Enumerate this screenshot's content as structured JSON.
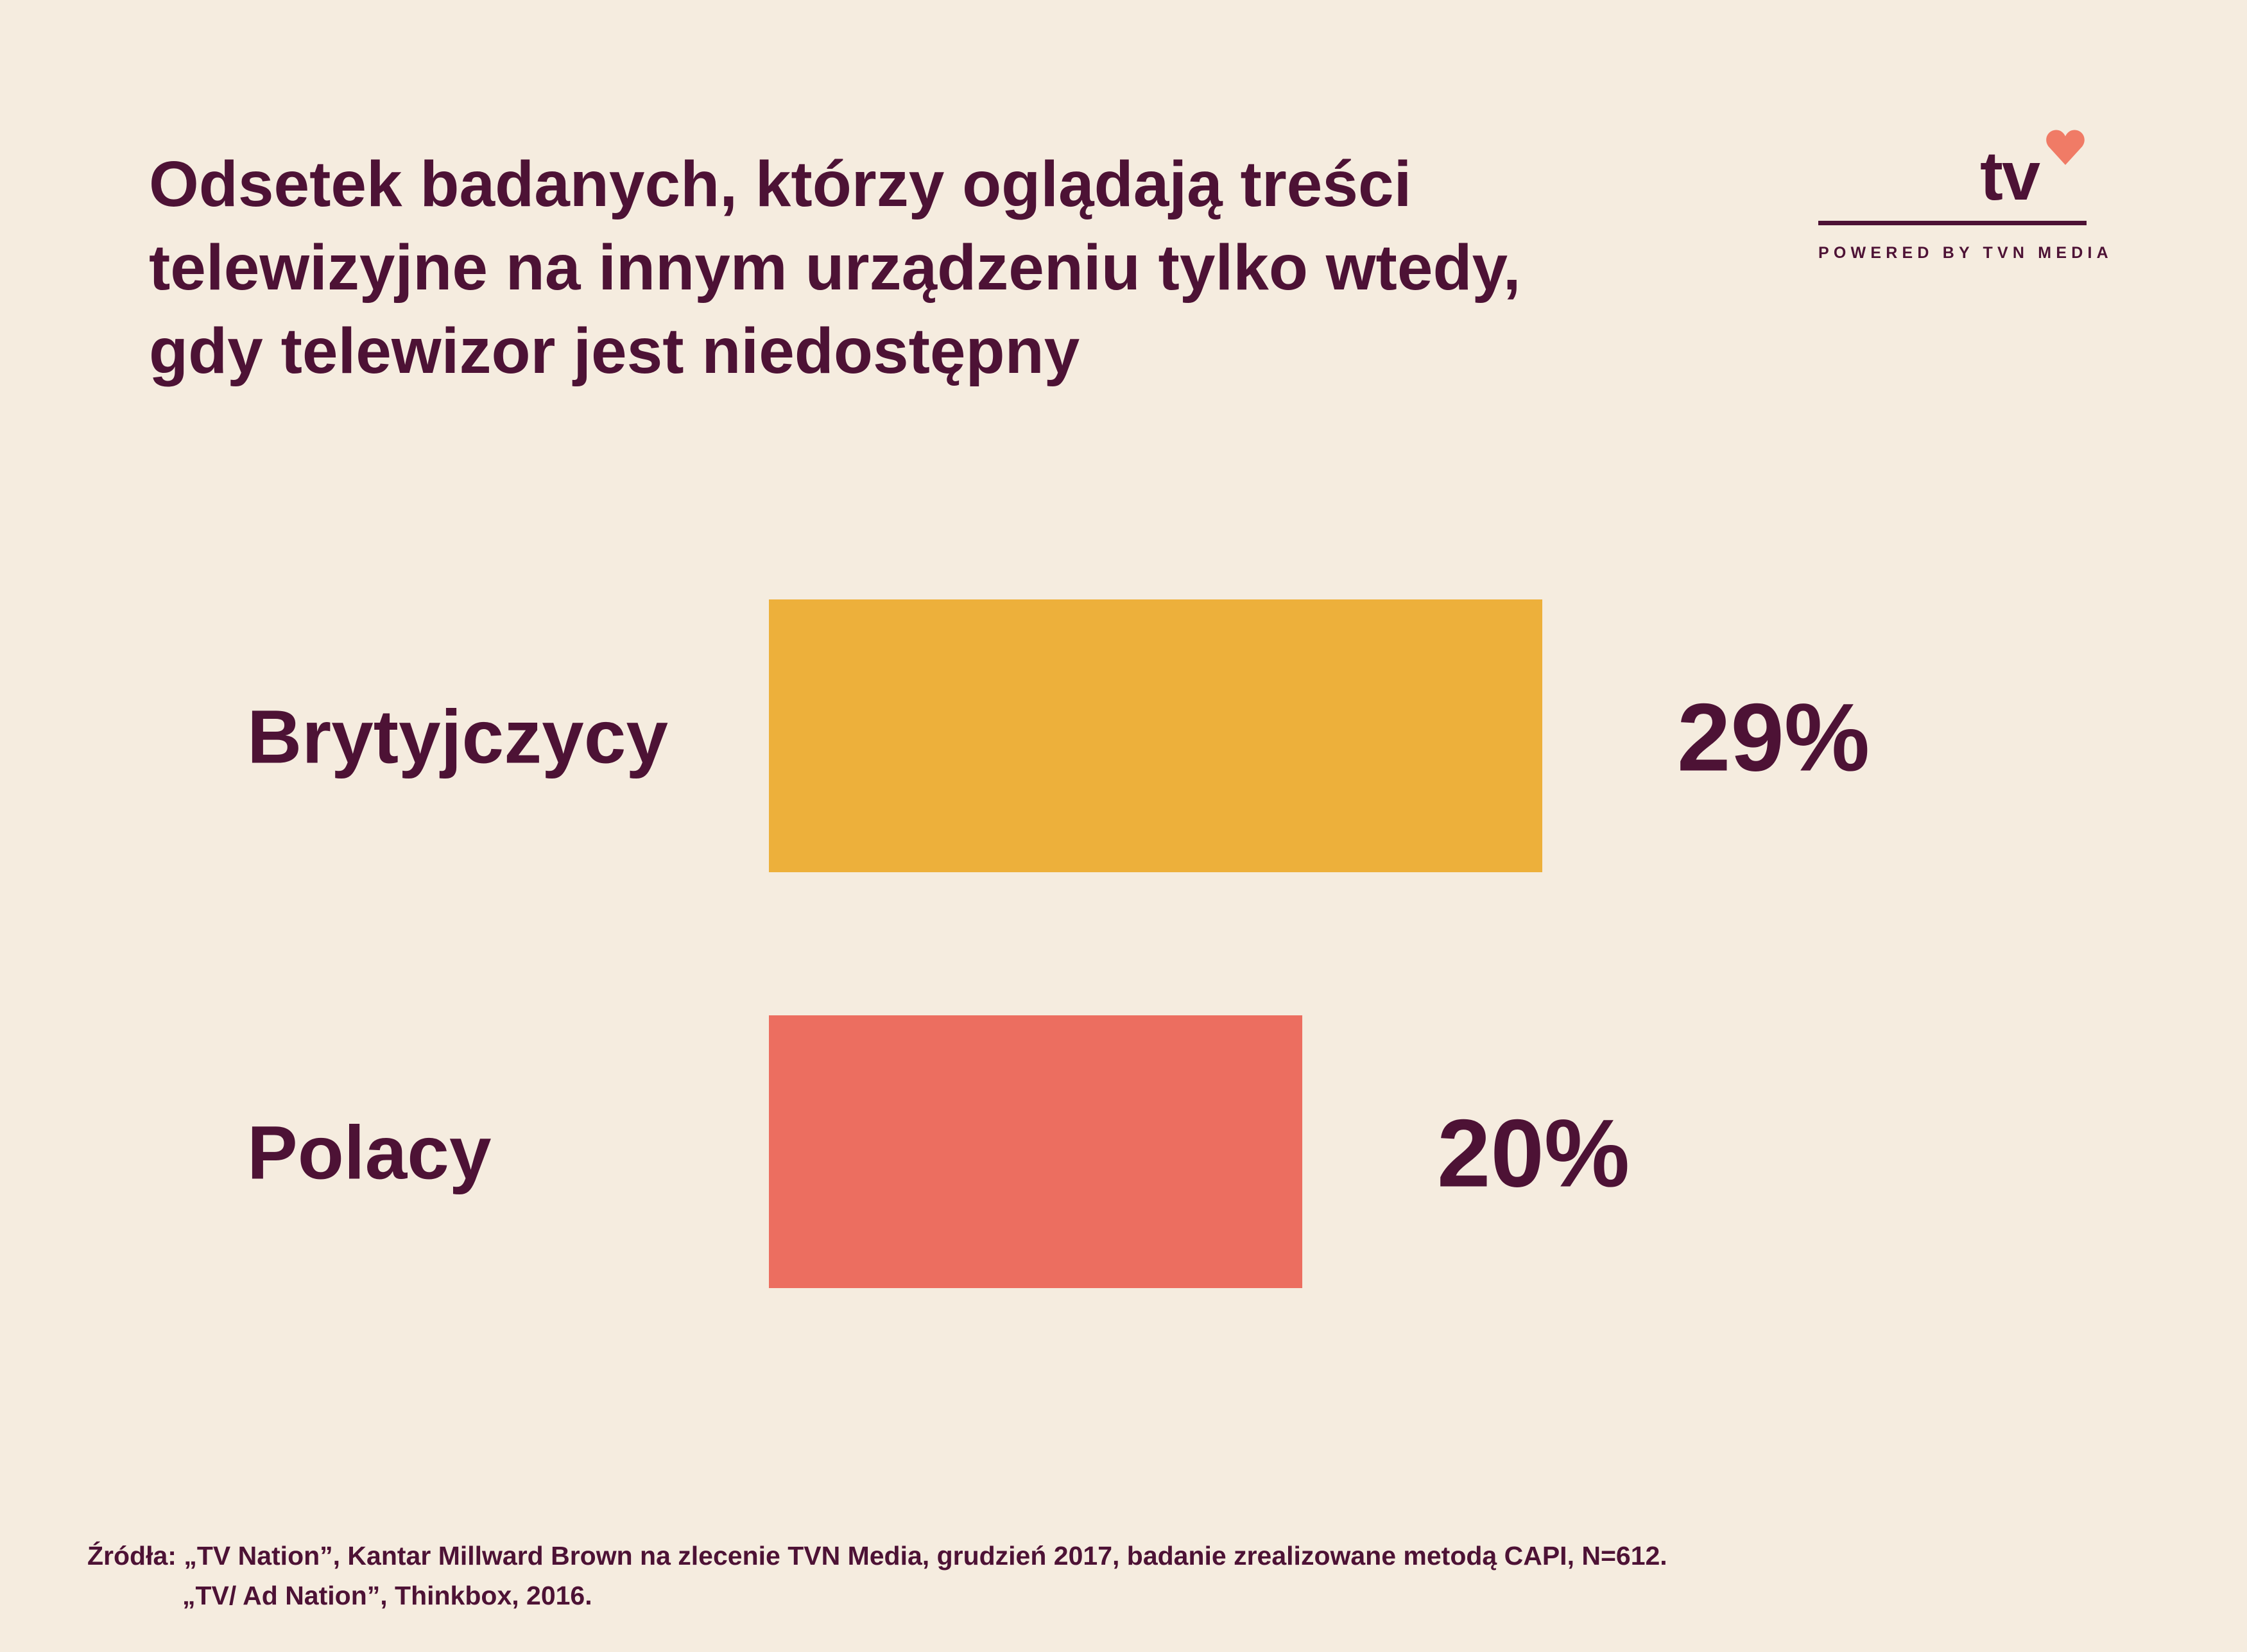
{
  "title": {
    "line1": "Odsetek badanych, którzy oglądają treści",
    "line2": "telewizyjne na innym urządzeniu tylko wtedy,",
    "line3": "gdy telewizor jest niedostępny"
  },
  "logo": {
    "text": "tv",
    "tagline": "POWERED BY TVN MEDIA",
    "icon": "heart-icon",
    "heart_color": "#f07b66"
  },
  "chart_data": {
    "type": "bar",
    "orientation": "horizontal",
    "title": "Odsetek badanych, którzy oglądają treści telewizyjne na innym urządzeniu tylko wtedy, gdy telewizor jest niedostępny",
    "categories": [
      "Brytyjczycy",
      "Polacy"
    ],
    "values": [
      29,
      20
    ],
    "value_labels": [
      "29%",
      "20%"
    ],
    "colors": [
      "#edb03b",
      "#ec6e60"
    ],
    "xlim": [
      0,
      29
    ],
    "grid": false,
    "legend": "none"
  },
  "source": {
    "line1": "Źródła: „TV Nation”, Kantar Millward Brown na zlecenie TVN Media, grudzień 2017, badanie zrealizowane metodą CAPI, N=612.",
    "line2": "„TV/ Ad Nation”, Thinkbox, 2016."
  }
}
